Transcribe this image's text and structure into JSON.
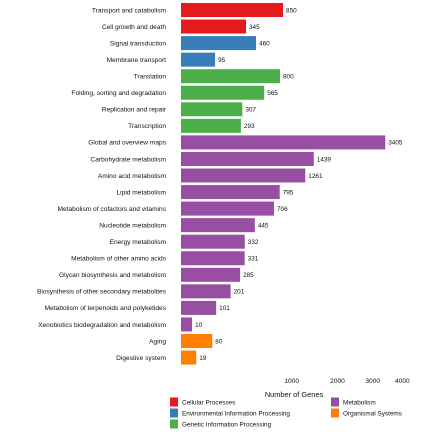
{
  "chart_data": {
    "type": "bar",
    "orientation": "horizontal",
    "x_scale": "sqrt",
    "xlabel": "Number of Genes",
    "xticks": [
      1000,
      2000,
      3000,
      4000
    ],
    "xlim": [
      0,
      4200
    ],
    "grid": false,
    "legend_position": "bottom",
    "groups": [
      {
        "name": "Cellular Processes",
        "color": "#E41A1C"
      },
      {
        "name": "Environmental Information Processing",
        "color": "#377EB8"
      },
      {
        "name": "Genetic Information Processing",
        "color": "#4DAF4A"
      },
      {
        "name": "Metabolism",
        "color": "#984EA3"
      },
      {
        "name": "Organismal Systems",
        "color": "#FF7F00"
      }
    ],
    "categories": [
      "Transport and catabolism",
      "Cell growth and death",
      "Signal transduction",
      "Membrane transport",
      "Translation",
      "Folding, sorting and degradation",
      "Replication and repair",
      "Transcription",
      "Global and overview maps",
      "Carbohydrate metabolism",
      "Amino acid metabolism",
      "Lipid metabolism",
      "Metabolism of cofactors and vitamins",
      "Nucleotide metabolism",
      "Energy metabolism",
      "Metabolism of other amino acids",
      "Glycan biosynthesis and metabolism",
      "Biosynthesis of other secondary metabolites",
      "Metabolism of terpenoids and polyketides",
      "Xenobiotics biodegradation and metabolism",
      "Aging",
      "Digestive system"
    ],
    "values": [
      850,
      345,
      460,
      95,
      800,
      565,
      307,
      293,
      3405,
      1439,
      1261,
      795,
      706,
      445,
      332,
      331,
      285,
      201,
      101,
      10,
      80,
      19
    ],
    "value_labels": [
      "850",
      "345",
      "460",
      "95",
      "800",
      "565",
      "307",
      "293",
      "3405",
      "1439",
      "1261",
      "795",
      "706",
      "445",
      "332",
      "331",
      "285",
      "201",
      "101",
      "10",
      "80",
      "19"
    ],
    "group_index": [
      0,
      0,
      1,
      1,
      2,
      2,
      2,
      2,
      3,
      3,
      3,
      3,
      3,
      3,
      3,
      3,
      3,
      3,
      3,
      3,
      4,
      4
    ]
  }
}
